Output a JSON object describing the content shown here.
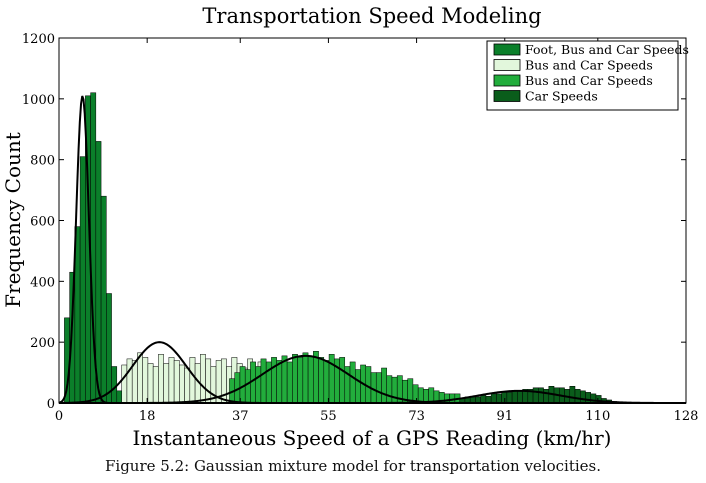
{
  "chart_data": {
    "type": "bar",
    "title": "Transportation Speed Modeling",
    "xlabel": "Instantaneous Speed of a GPS Reading (km/hr)",
    "ylabel": "Frequency Count",
    "xlim": [
      0,
      128
    ],
    "ylim": [
      0,
      1200
    ],
    "xticks": [
      0,
      18,
      37,
      55,
      73,
      91,
      110,
      128
    ],
    "yticks": [
      0,
      200,
      400,
      600,
      800,
      1000,
      1200
    ],
    "grid": false,
    "legend_position": "top-right",
    "bin_width": 1.07,
    "series": [
      {
        "name": "Foot, Bus and Car Speeds",
        "color": "#0b7f2a",
        "x_start": 1.1,
        "values": [
          280,
          430,
          580,
          810,
          1010,
          1020,
          860,
          680,
          360,
          120,
          40
        ]
      },
      {
        "name": "Bus and Car Speeds",
        "color": "#e2f7dc",
        "x_start": 12.8,
        "values": [
          125,
          145,
          140,
          165,
          150,
          130,
          120,
          160,
          130,
          150,
          140,
          125,
          115,
          150,
          130,
          160,
          145,
          120,
          140,
          145,
          120,
          150,
          130,
          115,
          145,
          110,
          135,
          100,
          120,
          100
        ]
      },
      {
        "name": "Bus and Car Speeds",
        "color": "#22ad3c",
        "x_start": 34.8,
        "values": [
          80,
          100,
          120,
          110,
          135,
          120,
          145,
          135,
          150,
          140,
          155,
          135,
          160,
          150,
          165,
          155,
          170,
          150,
          140,
          160,
          145,
          150,
          120,
          135,
          110,
          125,
          120,
          100,
          100,
          115,
          90,
          85,
          90,
          75,
          80,
          60,
          50,
          45,
          50,
          40,
          35,
          30,
          30,
          30
        ]
      },
      {
        "name": "Car Speeds",
        "color": "#0a5d1b",
        "x_start": 81.8,
        "values": [
          15,
          20,
          20,
          20,
          25,
          22,
          30,
          30,
          35,
          35,
          40,
          40,
          45,
          45,
          50,
          50,
          45,
          55,
          50,
          50,
          45,
          55,
          45,
          40,
          35,
          30,
          25,
          15,
          10,
          5
        ]
      }
    ],
    "fitted_curves": [
      {
        "mean": 4.8,
        "sd": 1.3,
        "peak": 1010
      },
      {
        "mean": 20.5,
        "sd": 5.5,
        "peak": 200
      },
      {
        "mean": 50.3,
        "sd": 8.8,
        "peak": 155
      },
      {
        "mean": 94,
        "sd": 8.5,
        "peak": 40
      }
    ]
  },
  "caption": "Figure 5.2:  Gaussian mixture model for transportation velocities."
}
